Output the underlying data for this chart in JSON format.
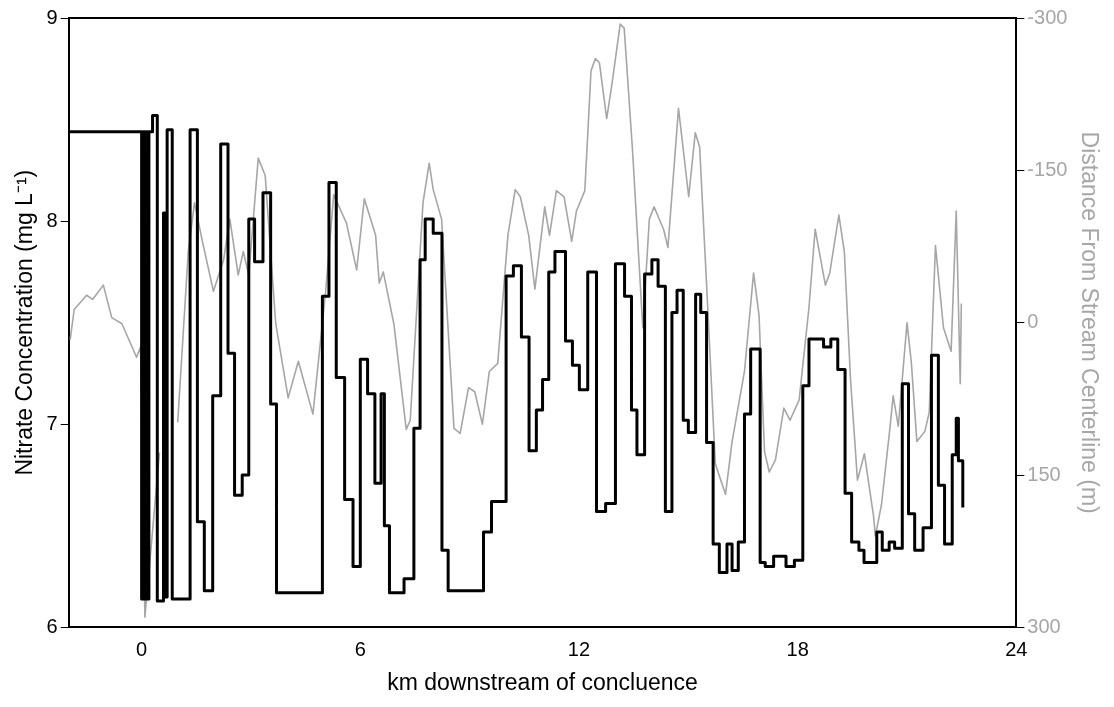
{
  "chart_data": {
    "type": "line",
    "xlabel": "km downstream of concluence",
    "ylabel": "Nitrate Concentration (mg L⁻¹)",
    "y2label": "Distance From Stream Centerline (m)",
    "xlim": [
      -2,
      24
    ],
    "xticks": [
      0,
      6,
      12,
      18,
      24
    ],
    "ylim": [
      6,
      9
    ],
    "yticks": [
      6,
      7,
      8,
      9
    ],
    "y2lim": [
      300,
      -300
    ],
    "y2ticks": [
      -300,
      -150,
      0,
      150,
      300
    ],
    "grid": false,
    "legend": false,
    "marker": "none",
    "line_style": "solid",
    "series": [
      {
        "type": "step",
        "color": "#000000",
        "x": [
          -2,
          0.0,
          0.04,
          0.08,
          0.12,
          0.16,
          0.2,
          0.3,
          0.43,
          0.6,
          0.64,
          0.7,
          0.84,
          1.33,
          1.53,
          1.72,
          1.95,
          2.17,
          2.37,
          2.55,
          2.76,
          2.94,
          3.1,
          3.33,
          3.54,
          3.7,
          4.96,
          5.14,
          5.34,
          5.57,
          5.8,
          6.0,
          6.2,
          6.4,
          6.57,
          6.66,
          6.8,
          7.2,
          7.47,
          7.64,
          7.78,
          8.0,
          8.24,
          8.41,
          9.38,
          9.6,
          10.0,
          10.2,
          10.42,
          10.63,
          10.83,
          11.0,
          11.17,
          11.34,
          11.63,
          11.82,
          12.01,
          12.24,
          12.48,
          12.73,
          13.0,
          13.25,
          13.44,
          13.59,
          13.8,
          14.0,
          14.17,
          14.37,
          14.55,
          14.69,
          14.86,
          15.0,
          15.2,
          15.34,
          15.5,
          15.68,
          15.85,
          16.06,
          16.2,
          16.37,
          16.54,
          16.71,
          16.97,
          17.11,
          17.34,
          17.68,
          17.91,
          18.14,
          18.31,
          18.71,
          18.91,
          19.1,
          19.3,
          19.48,
          19.68,
          19.82,
          20.17,
          20.32,
          20.51,
          20.66,
          20.87,
          21.04,
          21.21,
          21.44,
          21.67,
          21.86,
          22.03,
          22.24,
          22.35,
          22.41,
          22.53
        ],
        "values": [
          8.44,
          6.14,
          8.44,
          6.14,
          8.44,
          6.14,
          8.44,
          8.52,
          6.13,
          8.04,
          6.15,
          8.45,
          6.14,
          8.45,
          6.52,
          6.18,
          7.14,
          8.38,
          7.35,
          6.65,
          6.75,
          8.01,
          7.8,
          8.14,
          7.1,
          6.17,
          7.63,
          8.19,
          7.23,
          6.63,
          6.3,
          7.32,
          7.15,
          6.71,
          7.15,
          6.5,
          6.17,
          6.24,
          6.98,
          7.81,
          8.01,
          7.94,
          6.38,
          6.18,
          6.47,
          6.62,
          7.73,
          7.78,
          7.43,
          6.87,
          7.07,
          7.22,
          7.75,
          7.85,
          7.41,
          7.29,
          7.17,
          7.75,
          6.57,
          6.61,
          7.79,
          7.63,
          7.07,
          6.85,
          7.74,
          7.81,
          7.68,
          6.57,
          7.55,
          7.66,
          7.02,
          6.96,
          7.64,
          7.55,
          6.91,
          6.41,
          6.27,
          6.41,
          6.28,
          6.42,
          7.05,
          7.37,
          6.32,
          6.3,
          6.35,
          6.3,
          6.33,
          7.19,
          7.42,
          7.38,
          7.42,
          7.27,
          6.66,
          6.42,
          6.38,
          6.32,
          6.47,
          6.38,
          6.42,
          6.39,
          7.2,
          6.56,
          6.38,
          6.49,
          7.34,
          6.7,
          6.41,
          6.85,
          7.03,
          6.82,
          6.59
        ]
      },
      {
        "type": "line",
        "axis": "y2",
        "color": "#a6a6a6",
        "x": [
          -1.96,
          -1.85,
          -1.51,
          -1.34,
          -1.05,
          -0.82,
          -0.54,
          -0.14,
          -0.03,
          0.09,
          0.49,
          0.66,
          0.99,
          1.28,
          1.45,
          1.68,
          1.97,
          2.25,
          2.42,
          2.65,
          2.79,
          2.94,
          3.2,
          3.39,
          3.68,
          4.02,
          4.3,
          4.7,
          5.05,
          5.27,
          5.62,
          5.9,
          6.11,
          6.42,
          6.52,
          6.63,
          6.92,
          7.26,
          7.37,
          7.72,
          7.89,
          8.0,
          8.23,
          8.57,
          8.74,
          8.97,
          9.14,
          9.35,
          9.54,
          9.77,
          10.05,
          10.25,
          10.39,
          10.62,
          10.79,
          11.06,
          11.19,
          11.38,
          11.59,
          11.8,
          11.93,
          12.16,
          12.33,
          12.45,
          12.56,
          12.76,
          12.9,
          13.13,
          13.24,
          13.47,
          13.75,
          13.93,
          14.06,
          14.32,
          14.44,
          14.73,
          15.01,
          15.19,
          15.31,
          15.51,
          15.74,
          16.02,
          16.2,
          16.54,
          16.79,
          16.94,
          17.09,
          17.22,
          17.39,
          17.62,
          17.79,
          18.04,
          18.31,
          18.48,
          18.76,
          18.88,
          19.13,
          19.28,
          19.45,
          19.64,
          19.83,
          20.08,
          20.13,
          20.3,
          20.53,
          20.62,
          20.76,
          21.0,
          21.12,
          21.27,
          21.49,
          21.61,
          21.78,
          22.0,
          22.21,
          22.35,
          22.46,
          22.49
        ],
        "values": [
          17,
          -13,
          -27,
          -23,
          -37,
          -5,
          1,
          34,
          24,
          290,
          128,
          null,
          98,
          -70,
          -118,
          -78,
          -31,
          -62,
          -102,
          -47,
          -70,
          -47,
          -162,
          -145,
          1,
          74,
          38,
          90,
          -31,
          -126,
          -98,
          -52,
          -122,
          -86,
          -39,
          -50,
          1,
          105,
          96,
          -118,
          -157,
          -131,
          -102,
          104,
          109,
          64,
          68,
          100,
          48,
          40,
          -86,
          -131,
          -124,
          -86,
          -33,
          -114,
          -86,
          -130,
          -124,
          -80,
          -110,
          -130,
          -248,
          -260,
          -256,
          -201,
          -234,
          -294,
          -290,
          -169,
          5,
          -102,
          -114,
          -92,
          -74,
          -211,
          -124,
          -187,
          -173,
          -31,
          139,
          169,
          117,
          48,
          -49,
          -7,
          127,
          147,
          135,
          84,
          96,
          76,
          -15,
          -92,
          -37,
          -49,
          -106,
          -70,
          56,
          155,
          129,
          190,
          210,
          179,
          104,
          72,
          102,
          0,
          40,
          117,
          107,
          88,
          -76,
          5,
          28,
          -110,
          60,
          -19
        ]
      }
    ]
  }
}
